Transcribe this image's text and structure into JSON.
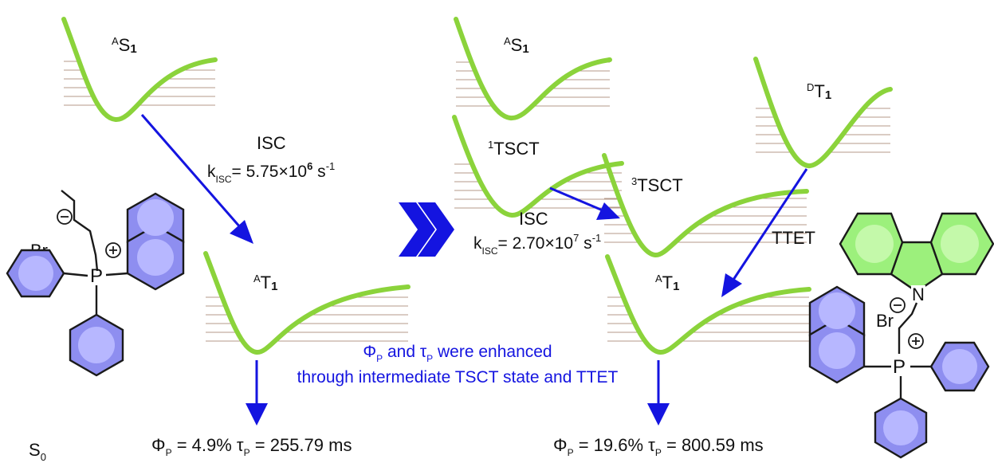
{
  "left": {
    "s1_label": "S",
    "s1_pre": "A",
    "s1_sub": "1",
    "t1_label": "T",
    "t1_pre": "A",
    "t1_sub": "1",
    "isc_label": "ISC",
    "k_main": "k",
    "k_sub": "ISC",
    "k_value": "= 5.75×10",
    "k_exp": "6",
    "k_unit": " s",
    "k_unit_exp": "-1",
    "phi": "Φ",
    "phi_sub": "P",
    "phi_value": " = 4.9% ",
    "tau": "τ",
    "tau_sub": "P",
    "tau_value": " = 255.79 ms",
    "s0": "S",
    "s0_sub": "0",
    "br": "Br",
    "p": "P"
  },
  "right": {
    "s1_label": "S",
    "s1_pre": "A",
    "s1_sub": "1",
    "tsct1_pre": "1",
    "tsct1_label": "TSCT",
    "tsct3_pre": "3",
    "tsct3_label": "TSCT",
    "dt1_pre": "D",
    "dt1_label": "T",
    "dt1_sub": "1",
    "at1_pre": "A",
    "at1_label": "T",
    "at1_sub": "1",
    "isc_label": "ISC",
    "k_main": "k",
    "k_sub": "ISC",
    "k_value": "= 2.70×10",
    "k_exp": "7",
    "k_unit": " s",
    "k_unit_exp": "-1",
    "ttet_label": "TTET",
    "phi": "Φ",
    "phi_sub": "P",
    "phi_value": " = 19.6% ",
    "tau": "τ",
    "tau_sub": "P",
    "tau_value": " = 800.59 ms",
    "br": "Br",
    "p": "P",
    "n": "N"
  },
  "note": {
    "phi": "Φ",
    "phi_sub": "P",
    "mid": " and ",
    "tau": "τ",
    "tau_sub": "P",
    "end": " were enhanced",
    "line2": "through intermediate TSCT state and TTET"
  },
  "colors": {
    "well": "#8bd33b",
    "arrow": "#1414e0",
    "ring_blue": "#8e8ef0",
    "ring_green": "#9cf07c"
  }
}
